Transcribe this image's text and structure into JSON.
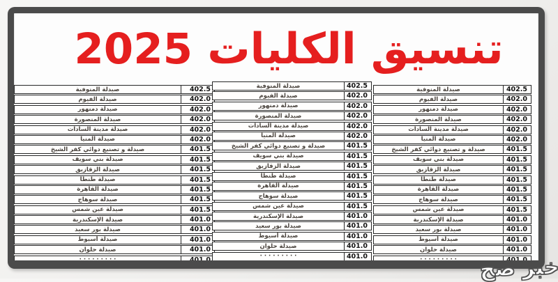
{
  "title": "تنسيق الكليات 2025",
  "watermark": "خبر صح",
  "colors": {
    "title_red": "#e51f1f",
    "frame_gray": "#4b4b4b",
    "row_border": "#262626",
    "name_text": "#4a443e",
    "value_text": "#141414"
  },
  "tables": {
    "count": 3,
    "note": "three identical copies of the same list shown side by side",
    "rows": [
      {
        "name": "صيدلة المنوفية",
        "value": "402.5"
      },
      {
        "name": "صيدلة الفيوم",
        "value": "402.0"
      },
      {
        "name": "صيدلة دمنهور",
        "value": "402.0"
      },
      {
        "name": "صيدلة المنصورة",
        "value": "402.0"
      },
      {
        "name": "صيدلة مدينة السادات",
        "value": "402.0"
      },
      {
        "name": "صيدلة المنيا",
        "value": "402.0"
      },
      {
        "name": "صيدلة و تصنيع دوائي كفر الشيخ",
        "value": "401.5"
      },
      {
        "name": "صيدلة بني سويف",
        "value": "401.5"
      },
      {
        "name": "صيدلة الزقازيق",
        "value": "401.5"
      },
      {
        "name": "صيدلة طنطا",
        "value": "401.5"
      },
      {
        "name": "صيدلة القاهرة",
        "value": "401.5"
      },
      {
        "name": "صيدلة سوهاج",
        "value": "401.5"
      },
      {
        "name": "صيدلة عين شمس",
        "value": "401.5"
      },
      {
        "name": "صيدلة الإسكندرية",
        "value": "401.0"
      },
      {
        "name": "صيدلة بور سعيد",
        "value": "401.0"
      },
      {
        "name": "صيدلة أسيوط",
        "value": "401.0"
      },
      {
        "name": "صيدلة حلوان",
        "value": "401.0"
      }
    ],
    "partial_row": {
      "name": "· · ·  · ·  · · · ·",
      "value": "401.0"
    }
  }
}
